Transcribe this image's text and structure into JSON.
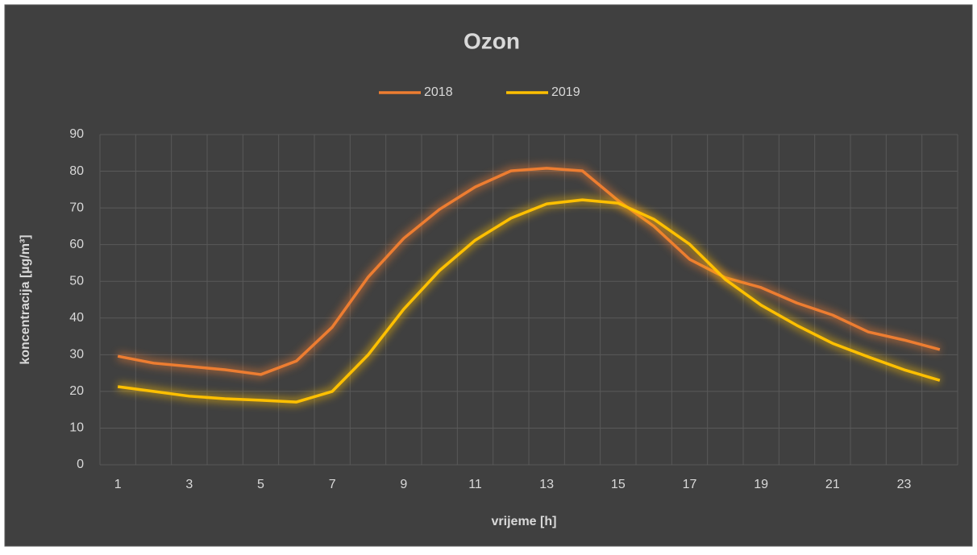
{
  "chart_data": {
    "type": "line",
    "title": "Ozon",
    "x_label": "vrijeme [h]",
    "y_label": "koncentracija [µg/m³]",
    "categories": [
      1,
      null,
      3,
      null,
      5,
      null,
      7,
      null,
      9,
      null,
      11,
      null,
      13,
      null,
      15,
      null,
      17,
      null,
      19,
      null,
      21,
      null,
      23,
      null
    ],
    "series": [
      {
        "name": "2018",
        "color": "#ed7d31",
        "values": [
          29.6,
          27.7,
          26.8,
          25.9,
          24.6,
          28.3,
          37.5,
          51.1,
          61.7,
          69.6,
          75.7,
          80.1,
          80.8,
          80.1,
          72,
          65,
          56,
          51,
          48.3,
          44.1,
          40.8,
          36.2,
          34,
          31.4
        ]
      },
      {
        "name": "2019",
        "color": "#ffc000",
        "values": [
          21.3,
          20,
          18.7,
          18,
          17.6,
          17.1,
          20,
          29.9,
          42.4,
          52.9,
          61.2,
          67.2,
          71.1,
          72.2,
          71.3,
          66.9,
          60.1,
          50.5,
          43.5,
          38,
          33.1,
          29.4,
          25.9,
          23
        ]
      }
    ],
    "ylim": [
      0,
      90
    ],
    "yticks": [
      0,
      10,
      20,
      30,
      40,
      50,
      60,
      70,
      80,
      90
    ],
    "grid": true,
    "legend": "top"
  }
}
